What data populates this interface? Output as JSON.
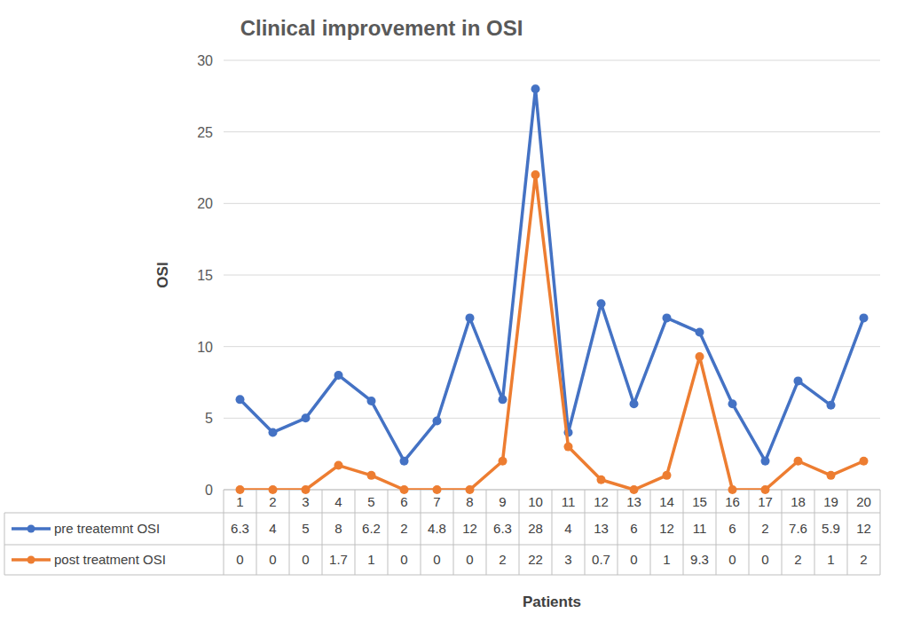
{
  "chart_data": {
    "type": "line",
    "title": "Clinical improvement in OSI",
    "x_label": "Patients",
    "y_label": "OSI",
    "categories": [
      "1",
      "2",
      "3",
      "4",
      "5",
      "6",
      "7",
      "8",
      "9",
      "10",
      "11",
      "12",
      "13",
      "14",
      "15",
      "16",
      "17",
      "18",
      "19",
      "20"
    ],
    "series": [
      {
        "name": "pre treatemnt OSI",
        "color": "#4472c4",
        "marker": "circle",
        "values": [
          6.3,
          4,
          5,
          8,
          6.2,
          2,
          4.8,
          12,
          6.3,
          28,
          4,
          13,
          6,
          12,
          11,
          6,
          2,
          7.6,
          5.9,
          12
        ]
      },
      {
        "name": "post treatment OSI",
        "color": "#ed7d31",
        "marker": "circle",
        "values": [
          0,
          0,
          0,
          1.7,
          1,
          0,
          0,
          0,
          2,
          22,
          3,
          0.7,
          0,
          1,
          9.3,
          0,
          0,
          2,
          1,
          2
        ]
      }
    ],
    "ylim": [
      0,
      30
    ],
    "yticks": [
      0,
      5,
      10,
      15,
      20,
      25,
      30
    ],
    "grid": true,
    "legend": "bottom"
  }
}
